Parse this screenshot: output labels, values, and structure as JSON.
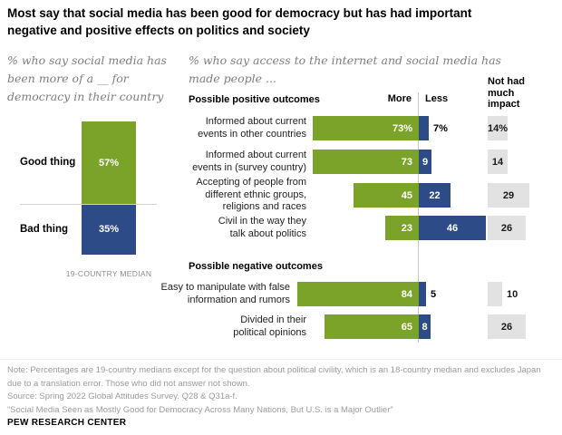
{
  "title": "Most say that social media has been good for democracy but has had important\nnegative and positive effects on politics and society",
  "colors": {
    "more_green": "#7ba32a",
    "less_navy": "#2d4c87",
    "impact_gray": "#e2e2e2",
    "axis_gray": "#c9c9c9",
    "subtitle_gray": "#7e7e7e"
  },
  "chart_data": [
    {
      "type": "bar",
      "variant": "stacked-single-column",
      "subtitle": "% who say social media has\nbeen more of a __ for\ndemocracy in their country",
      "categories": [
        "Good thing",
        "Bad thing"
      ],
      "values": [
        57,
        35
      ],
      "value_labels": [
        "57%",
        "35%"
      ],
      "colors": [
        "#7ba32a",
        "#2d4c87"
      ],
      "caption": "19-COUNTRY MEDIAN"
    },
    {
      "type": "bar",
      "variant": "diverging-horizontal",
      "subtitle": "% who say access to the internet and social media has\nmade people ...",
      "axis_headers": {
        "more": "More",
        "less": "Less",
        "impact": "Not had much impact"
      },
      "series_colors": {
        "more": "#7ba32a",
        "less": "#2d4c87",
        "impact": "#e2e2e2"
      },
      "groups": [
        {
          "header": "Possible positive outcomes",
          "rows": [
            {
              "label": "Informed about current\nevents in other countries",
              "more": 73,
              "less": 7,
              "impact": 14,
              "more_text": "73%",
              "less_text": "7%",
              "impact_text": "14%"
            },
            {
              "label": "Informed about current\nevents in (survey country)",
              "more": 73,
              "less": 9,
              "impact": 14,
              "more_text": "73",
              "less_text": "9",
              "impact_text": "14"
            },
            {
              "label": "Accepting of people from\ndifferent ethnic groups,\nreligions and races",
              "more": 45,
              "less": 22,
              "impact": 29,
              "more_text": "45",
              "less_text": "22",
              "impact_text": "29"
            },
            {
              "label": "Civil in the way they\ntalk about politics",
              "more": 23,
              "less": 46,
              "impact": 26,
              "more_text": "23",
              "less_text": "46",
              "impact_text": "26"
            }
          ]
        },
        {
          "header": "Possible negative outcomes",
          "rows": [
            {
              "label": "Easy to manipulate with false\ninformation and rumors",
              "more": 84,
              "less": 5,
              "impact": 10,
              "more_text": "84",
              "less_text": "5",
              "impact_text": "10"
            },
            {
              "label": "Divided in their\npolitical opinions",
              "more": 65,
              "less": 8,
              "impact": 26,
              "more_text": "65",
              "less_text": "8",
              "impact_text": "26"
            }
          ]
        }
      ]
    }
  ],
  "footer": {
    "note": "Note: Percentages are 19-country medians except for the question about political civility, which is an 18-country median and excludes Japan\ndue to a translation error. Those who did not answer not shown.",
    "source": "Source: Spring 2022 Global Attitudes Survey. Q28 & Q31a-f.",
    "quote": "“Social Media Seen as Mostly Good for Democracy Across Many Nations, But U.S. is a Major Outlier”",
    "brand": "PEW RESEARCH CENTER"
  }
}
